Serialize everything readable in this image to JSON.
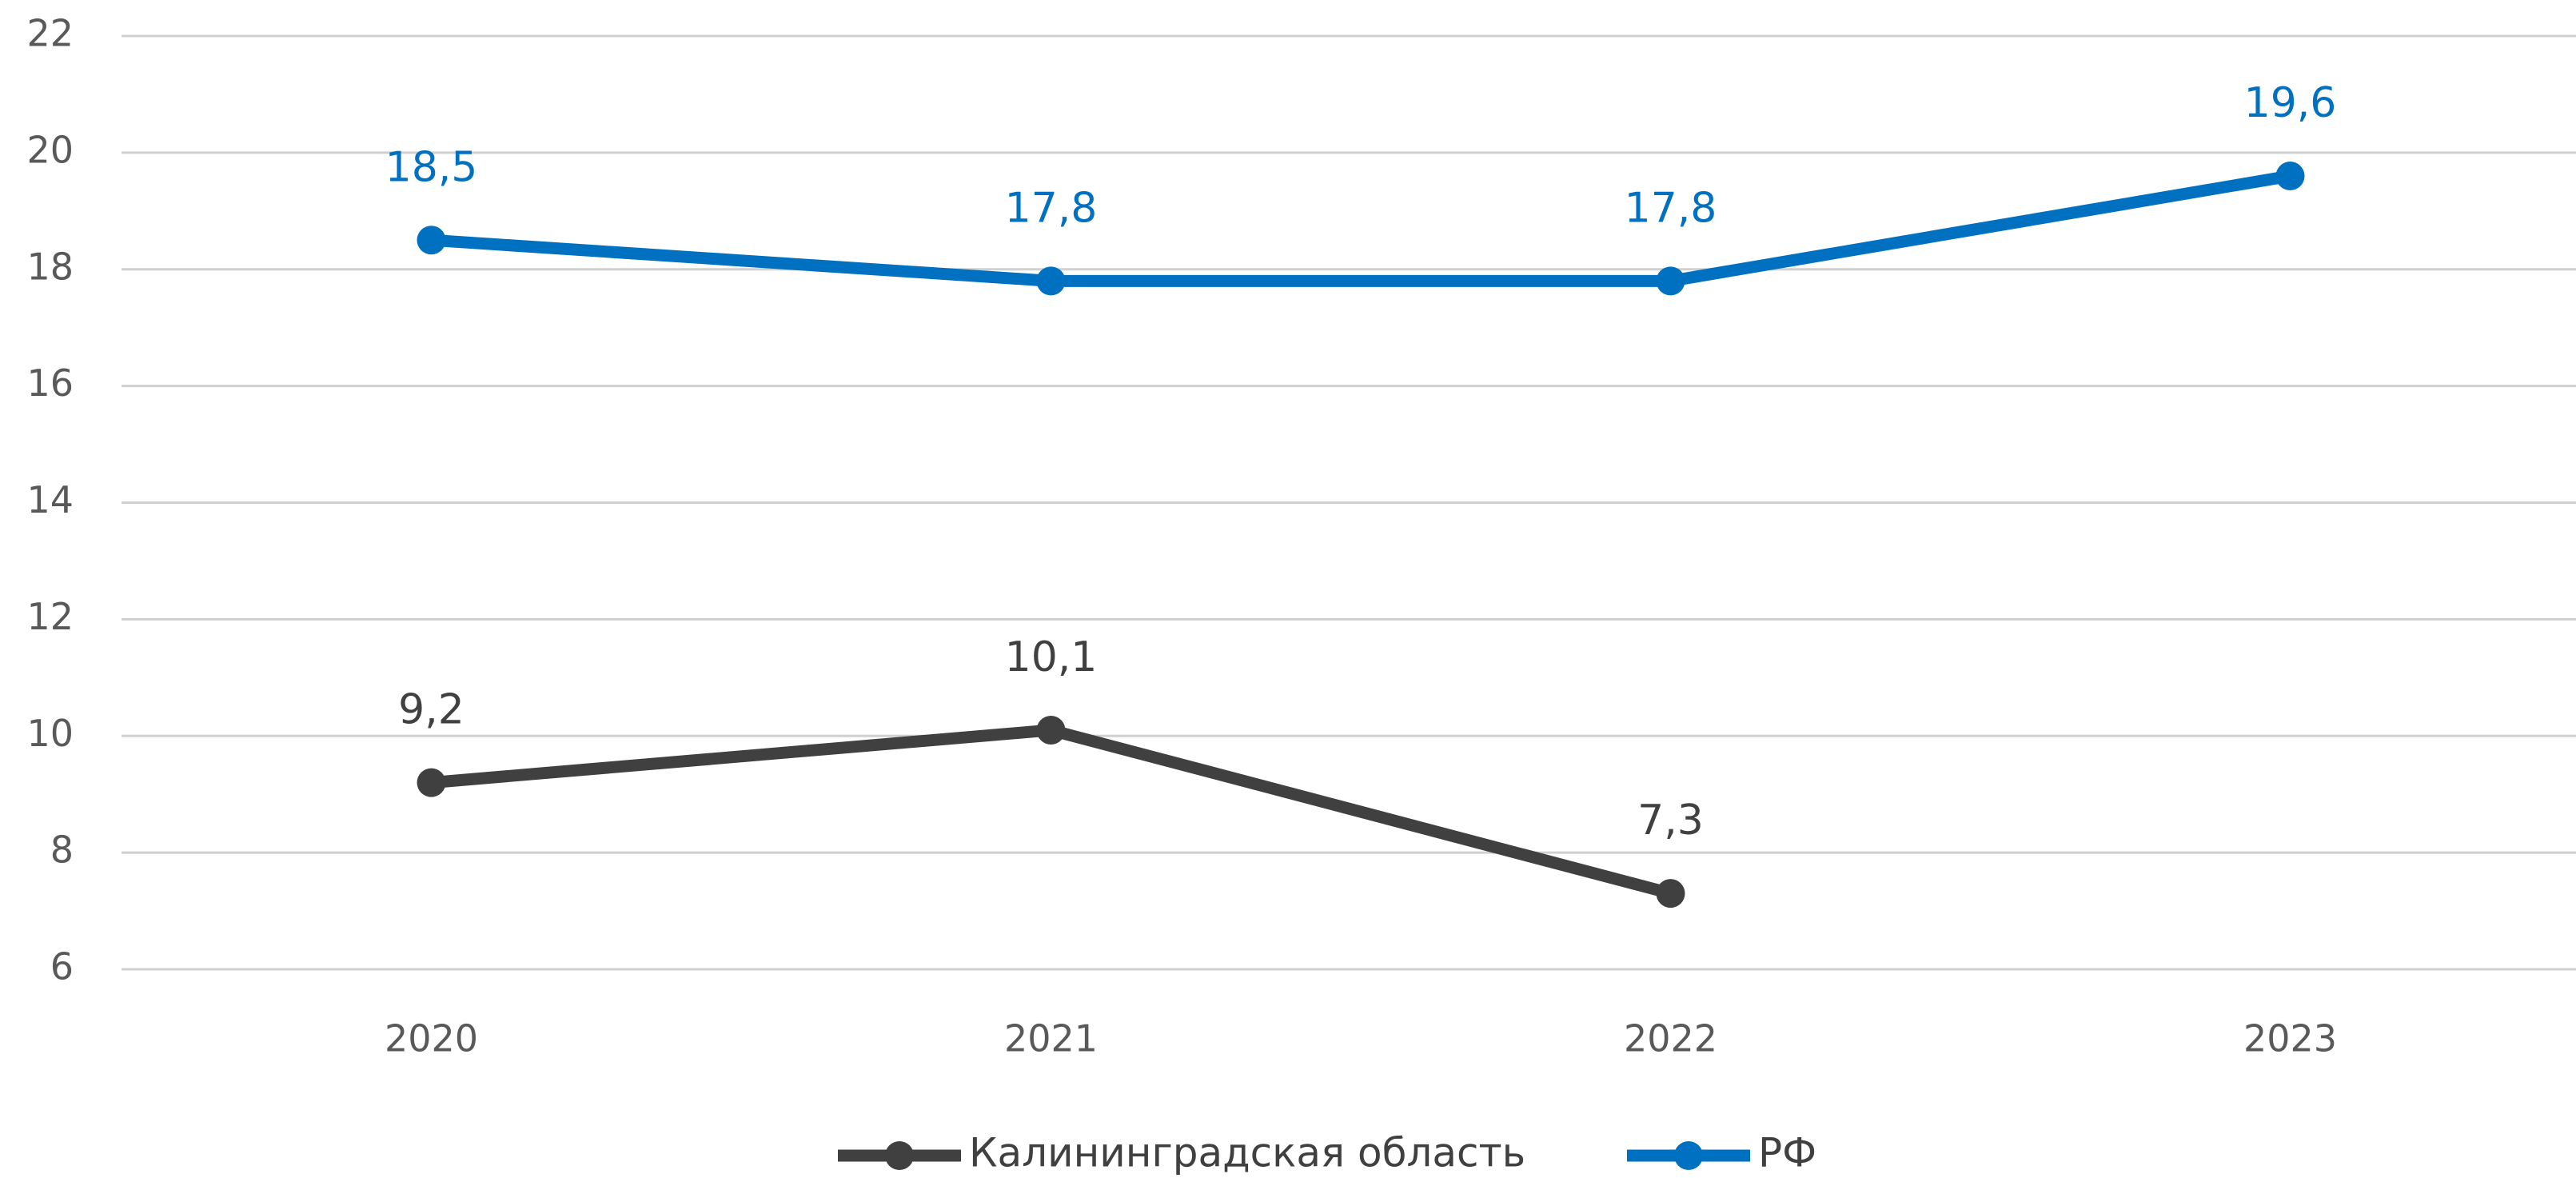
{
  "chart_data": {
    "type": "line",
    "categories": [
      "2020",
      "2021",
      "2022",
      "2023"
    ],
    "series": [
      {
        "name": "Калининградская область",
        "color": "#404040",
        "values": [
          9.2,
          10.1,
          7.3,
          null
        ],
        "value_labels": [
          "9,2",
          "10,1",
          "7,3",
          null
        ]
      },
      {
        "name": "РФ",
        "color": "#0070c0",
        "values": [
          18.5,
          17.8,
          17.8,
          19.6
        ],
        "value_labels": [
          "18,5",
          "17,8",
          "17,8",
          "19,6"
        ]
      }
    ],
    "ylim": [
      6,
      22
    ],
    "yticks": [
      6,
      8,
      10,
      12,
      14,
      16,
      18,
      20,
      22
    ],
    "grid": true,
    "legend": "bottom"
  }
}
